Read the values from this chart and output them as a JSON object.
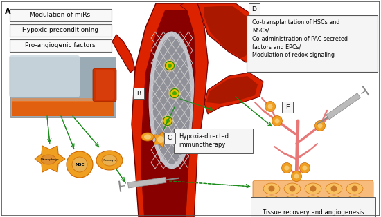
{
  "bg_color": "#ffffff",
  "border_color": "#555555",
  "label_A": "A",
  "label_B": "B",
  "label_C": "C",
  "label_D": "D",
  "label_E": "E",
  "box1_text": "Modulation of miRs",
  "box2_text": "Hypoxic preconditioning",
  "box3_text": "Pro-angiogenic factors",
  "box_D_text": "Co-transplantation of HSCs and\nMSCs/\nCo-administration of PAC secreted\nfactors and EPCs/\nModulation of redox signaling",
  "box_C_text": "Hypoxia-directed\nimmunotherapy",
  "bottom_text": "Tissue recovery and angiogenesis",
  "arrow_color": "#1a8c1a",
  "vessel_red": "#dd2200",
  "vessel_mid": "#aa1800",
  "vessel_dark": "#6b0000",
  "vessel_inner": "#880000",
  "cell_orange": "#f0a020",
  "cell_light": "#f5c870",
  "cell_border": "#cc6600",
  "angio_pink": "#e87878",
  "tissue_orange": "#f5a550",
  "syringe_gray": "#bbbbbb",
  "syringe_dark": "#888888",
  "mesh_color": "#d0d0d0",
  "dot_yellow": "#e8c000",
  "dot_green": "#44aa00"
}
